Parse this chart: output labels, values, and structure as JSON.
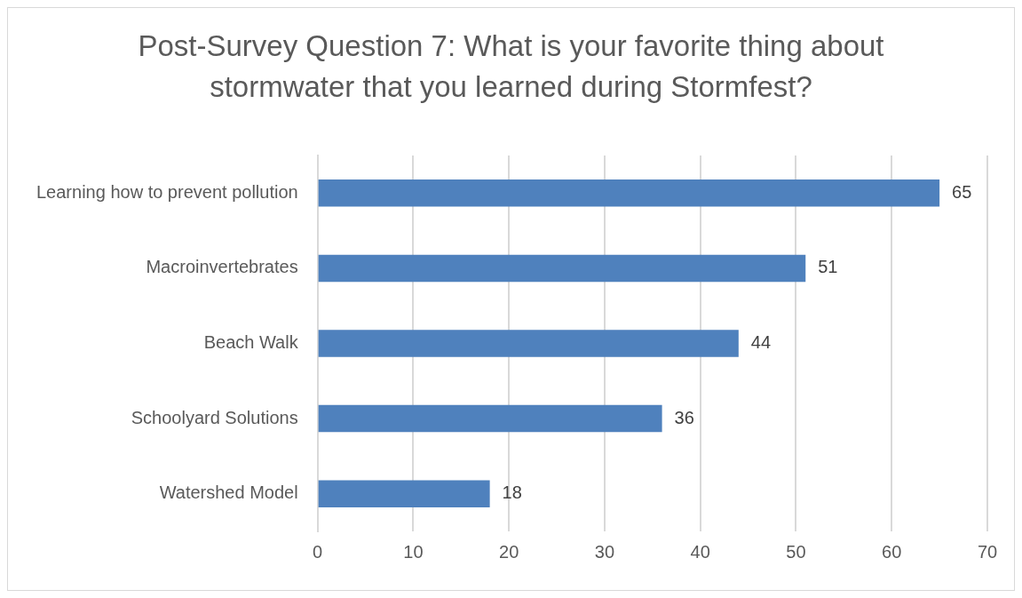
{
  "chart_data": {
    "type": "bar",
    "orientation": "horizontal",
    "title": "Post-Survey Question 7: What is your favorite thing about stormwater that you learned during Stormfest?",
    "categories": [
      "Learning how to prevent pollution",
      "Macroinvertebrates",
      "Beach Walk",
      "Schoolyard Solutions",
      "Watershed Model"
    ],
    "values": [
      65,
      51,
      44,
      36,
      18
    ],
    "color": "#4f81bd",
    "xlim": [
      0,
      70
    ],
    "xticks": [
      0,
      10,
      20,
      30,
      40,
      50,
      60,
      70
    ],
    "grid": "x",
    "data_labels": true,
    "legend": false
  }
}
